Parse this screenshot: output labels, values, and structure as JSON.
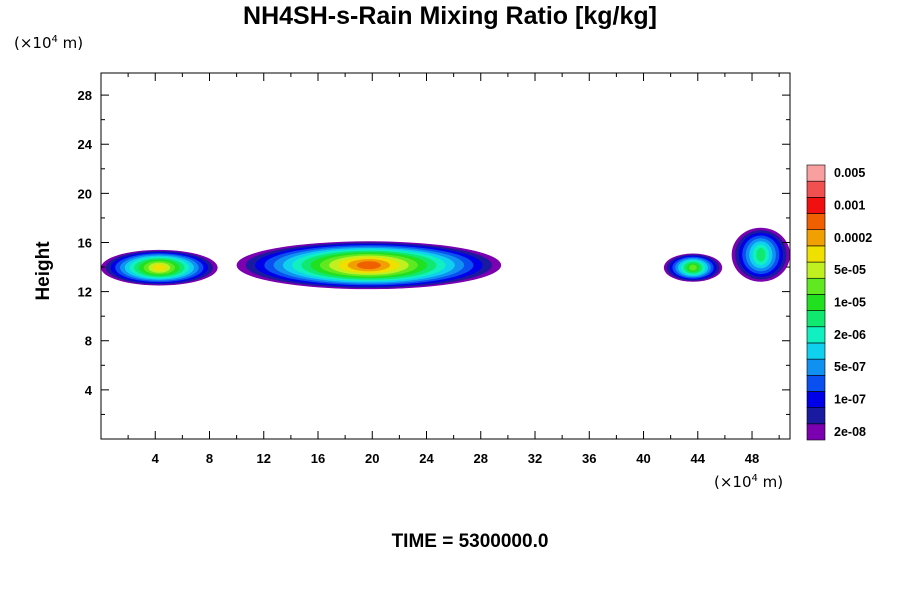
{
  "chart_data": {
    "type": "heatmap",
    "title": "NH4SH-s-Rain Mixing Ratio [kg/kg]",
    "ylabel": "Height",
    "x_unit": {
      "prefix": "(×10",
      "exp": "4",
      "suffix": " m)"
    },
    "y_unit": {
      "prefix": "(×10",
      "exp": "4",
      "suffix": " m)"
    },
    "xlim": [
      0,
      50.8
    ],
    "ylim": [
      0,
      29.8
    ],
    "x_ticks": [
      4,
      8,
      12,
      16,
      20,
      24,
      28,
      32,
      36,
      40,
      44,
      48
    ],
    "y_ticks": [
      4,
      8,
      12,
      16,
      20,
      24,
      28
    ],
    "colorbar": {
      "colors": [
        "#7a00b0",
        "#1a1aa0",
        "#0000e8",
        "#0a50f0",
        "#1090f0",
        "#10d0f0",
        "#10f0c0",
        "#10e870",
        "#20e020",
        "#60e820",
        "#c0f020",
        "#f0e000",
        "#f0a000",
        "#f06000",
        "#f01010",
        "#f05050",
        "#f8a0a0"
      ],
      "labels": [
        "2e-08",
        "1e-07",
        "5e-07",
        "2e-06",
        "1e-05",
        "5e-05",
        "0.0002",
        "0.001",
        "0.005"
      ]
    },
    "cloud_regions": [
      {
        "x_start": 0,
        "x_end": 8.6,
        "z_bottom": 12.5,
        "z_top": 15.4,
        "peak_level": 11
      },
      {
        "x_start": 10,
        "x_end": 29.5,
        "z_bottom": 12.2,
        "z_top": 16.1,
        "peak_level": 13
      },
      {
        "x_start": 41.5,
        "x_end": 45.8,
        "z_bottom": 12.8,
        "z_top": 15.1,
        "peak_level": 9
      },
      {
        "x_start": 46.5,
        "x_end": 50.8,
        "z_bottom": 12.8,
        "z_top": 17.2,
        "peak_level": 7
      }
    ]
  },
  "footer": {
    "time_label": "TIME = 5300000.0"
  }
}
